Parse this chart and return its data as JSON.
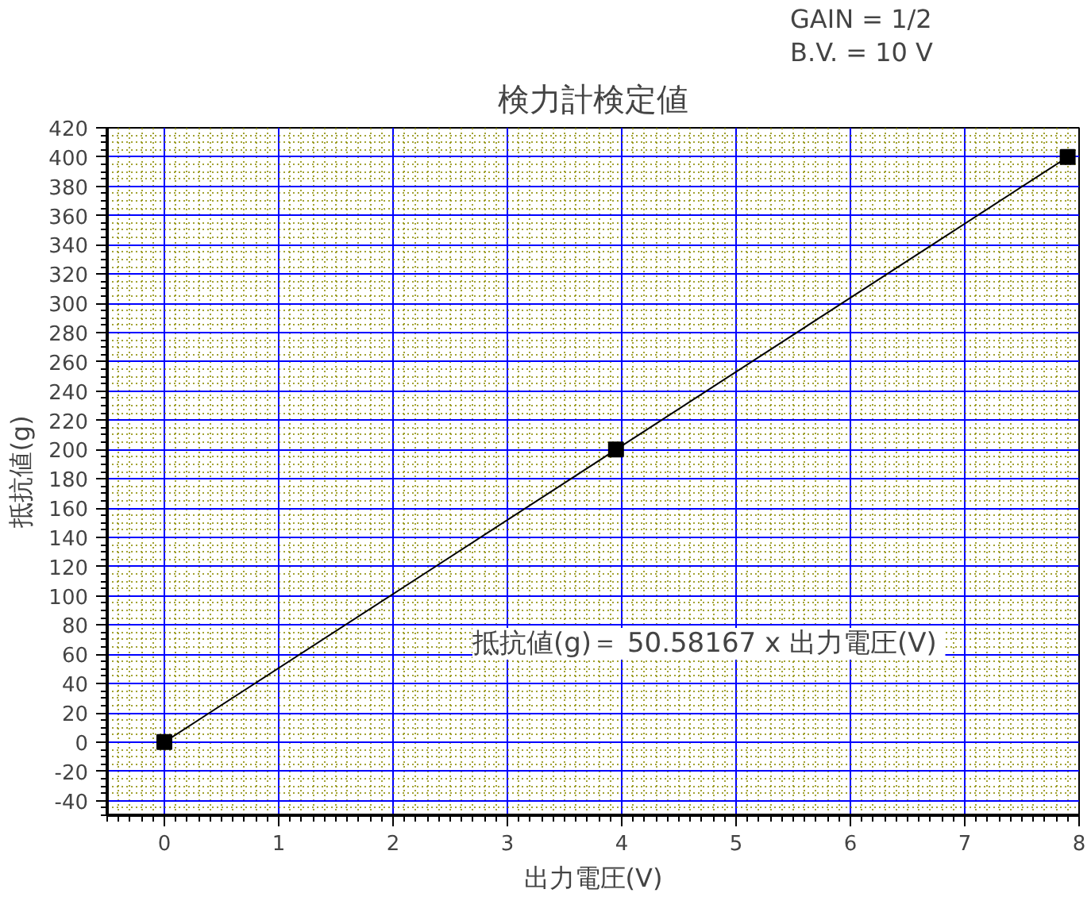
{
  "chart_data": {
    "type": "line",
    "title": "検力計検定値",
    "xlabel": "出力電圧(V)",
    "ylabel": "抵抗値(g)",
    "x": [
      0,
      3.95,
      7.9
    ],
    "series": [
      {
        "color": "#000000",
        "values": [
          0,
          200,
          400
        ]
      }
    ],
    "marker": "square",
    "line_style": "solid",
    "xlim": [
      -0.5,
      8
    ],
    "xticks": [
      0,
      1,
      2,
      3,
      4,
      5,
      6,
      7,
      8
    ],
    "ylim": [
      -50,
      420
    ],
    "yticks": [
      -40,
      -20,
      0,
      20,
      40,
      60,
      80,
      100,
      120,
      140,
      160,
      180,
      200,
      220,
      240,
      260,
      280,
      300,
      320,
      340,
      360,
      380,
      400,
      420
    ],
    "grid": true,
    "annotations": [
      "GAIN = 1/2",
      "B.V. = 10 V",
      "抵抗値(g)＝  50.58167 x 出力電圧(V)"
    ]
  }
}
